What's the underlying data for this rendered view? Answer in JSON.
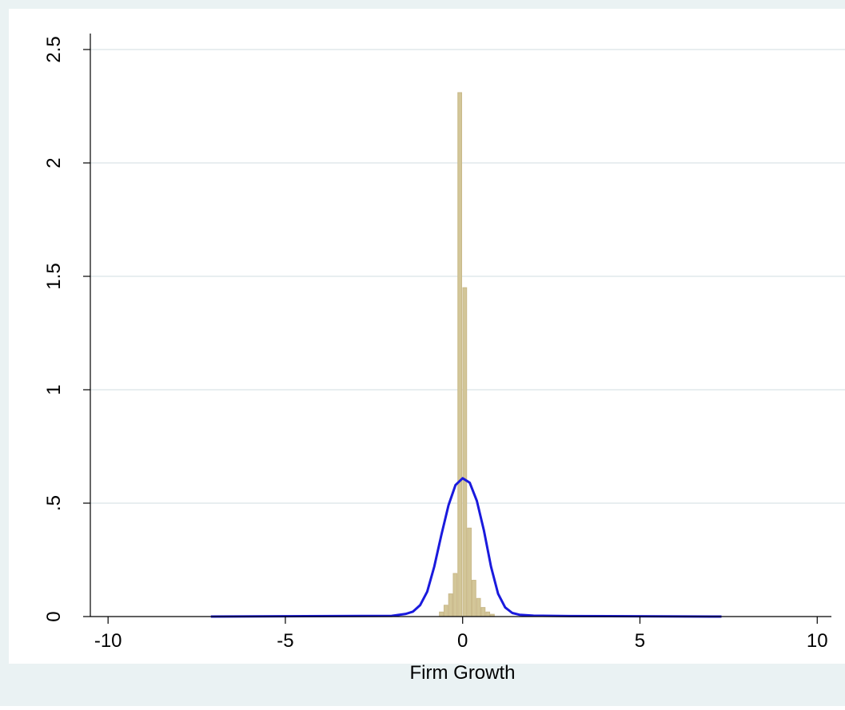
{
  "chart_data": {
    "type": "bar",
    "title": "",
    "xlabel": "Firm Growth",
    "ylabel": "",
    "xlim": [
      -10.5,
      10.4
    ],
    "ylim": [
      0,
      2.5
    ],
    "x_ticks": [
      -10,
      -5,
      0,
      5,
      10
    ],
    "x_tick_labels": [
      "-10",
      "-5",
      "0",
      "5",
      "10"
    ],
    "y_ticks": [
      0,
      0.5,
      1,
      1.5,
      2,
      2.5
    ],
    "y_tick_labels": [
      "0",
      ".5",
      "1",
      "1.5",
      "2",
      "2.5"
    ],
    "grid": "horizontal",
    "legend": "none",
    "histogram": {
      "name": "",
      "bin_width": 0.13,
      "bins": [
        {
          "x": -0.59,
          "density": 0.02
        },
        {
          "x": -0.46,
          "density": 0.05
        },
        {
          "x": -0.33,
          "density": 0.1
        },
        {
          "x": -0.2,
          "density": 0.19
        },
        {
          "x": -0.07,
          "density": 2.31
        },
        {
          "x": 0.07,
          "density": 1.45
        },
        {
          "x": 0.2,
          "density": 0.39
        },
        {
          "x": 0.33,
          "density": 0.16
        },
        {
          "x": 0.46,
          "density": 0.08
        },
        {
          "x": 0.59,
          "density": 0.04
        },
        {
          "x": 0.72,
          "density": 0.02
        },
        {
          "x": 0.85,
          "density": 0.01
        }
      ]
    },
    "series": [
      {
        "name": "",
        "type": "line",
        "x": [
          -7.1,
          -2,
          -1.6,
          -1.4,
          -1.2,
          -1.0,
          -0.8,
          -0.6,
          -0.4,
          -0.2,
          0,
          0.2,
          0.4,
          0.6,
          0.8,
          1.0,
          1.2,
          1.4,
          1.6,
          2,
          3,
          7.3
        ],
        "y": [
          0,
          0.003,
          0.012,
          0.022,
          0.05,
          0.11,
          0.22,
          0.36,
          0.49,
          0.58,
          0.61,
          0.59,
          0.51,
          0.38,
          0.22,
          0.1,
          0.04,
          0.016,
          0.008,
          0.004,
          0.002,
          0
        ]
      }
    ],
    "colors": {
      "bars": "#d3c698",
      "bar_edge": "#c9b98a",
      "line": "#1a1add",
      "plot_bg": "#ffffff",
      "outer_bg": "#eaf2f3",
      "grid": "#e8eef0"
    }
  }
}
